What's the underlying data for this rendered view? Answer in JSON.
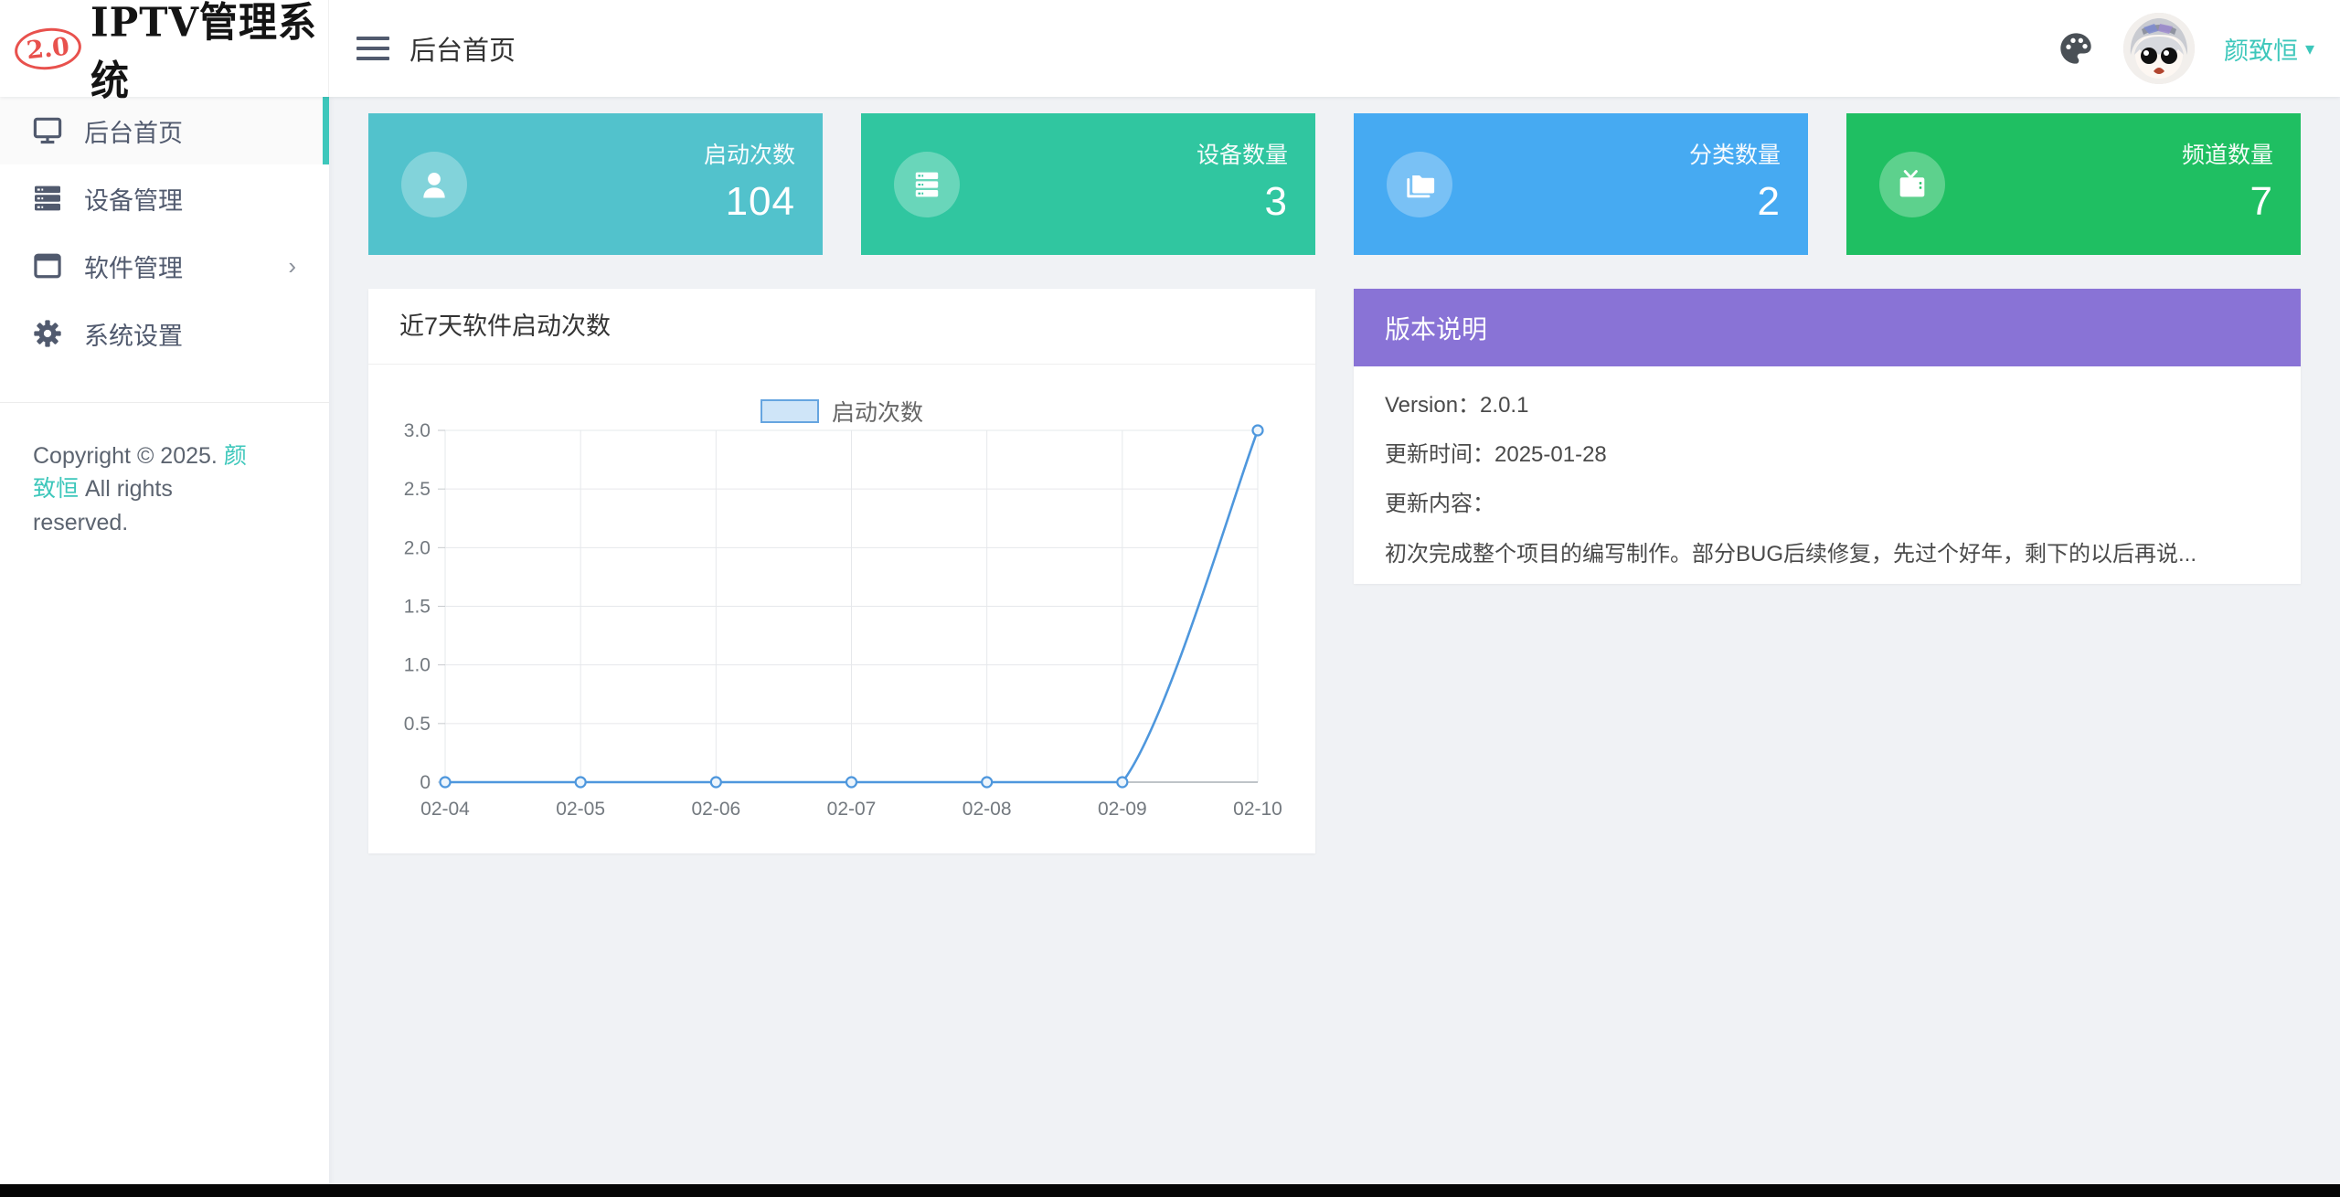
{
  "theme": {
    "accent_teal": "#3dc7bb",
    "content_bg": "#f0f2f5",
    "chart_line": "#4e97dd",
    "legend_fill": "#cfe5f8",
    "legend_border": "#66a5e0"
  },
  "app": {
    "version_badge": "2.0",
    "title": "IPTV管理系统"
  },
  "header": {
    "breadcrumb": "后台首页",
    "username": "颜致恒",
    "caret": "▾",
    "icons": [
      "hamburger-icon",
      "palette-icon",
      "avatar"
    ]
  },
  "sidebar": {
    "items": [
      {
        "label": "后台首页",
        "icon": "monitor-icon",
        "active": true
      },
      {
        "label": "设备管理",
        "icon": "server-icon",
        "active": false
      },
      {
        "label": "软件管理",
        "icon": "window-icon",
        "active": false,
        "expand_arrow": "›"
      },
      {
        "label": "系统设置",
        "icon": "gear-icon",
        "active": false
      }
    ],
    "copyright_prefix": "Copyright © 2025. ",
    "copyright_name": "颜致恒",
    "copyright_suffix": " All rights reserved."
  },
  "stats": [
    {
      "label": "启动次数",
      "value": "104",
      "color": "#52c2cc",
      "icon": "user-icon"
    },
    {
      "label": "设备数量",
      "value": "3",
      "color": "#30c6a0",
      "icon": "server-stack-icon"
    },
    {
      "label": "分类数量",
      "value": "2",
      "color": "#46aaf2",
      "icon": "folder-icon"
    },
    {
      "label": "频道数量",
      "value": "7",
      "color": "#1fbf62",
      "icon": "tv-icon"
    }
  ],
  "chart_panel": {
    "title": "近7天软件启动次数"
  },
  "chart_data": {
    "type": "line",
    "title": "近7天软件启动次数",
    "x": [
      "02-04",
      "02-05",
      "02-06",
      "02-07",
      "02-08",
      "02-09",
      "02-10"
    ],
    "series": [
      {
        "name": "启动次数",
        "values": [
          0,
          0,
          0,
          0,
          0,
          0,
          3
        ]
      }
    ],
    "xlabel": "",
    "ylabel": "",
    "ylim": [
      0,
      3
    ],
    "yticks": [
      0,
      0.5,
      1.0,
      1.5,
      2.0,
      2.5,
      3.0
    ],
    "grid": true,
    "smooth": true,
    "legend_position": "top-center"
  },
  "version_panel": {
    "title": "版本说明",
    "header_color": "#8973d6",
    "lines": [
      "Version：2.0.1",
      "更新时间：2025-01-28",
      "更新内容：",
      "初次完成整个项目的编写制作。部分BUG后续修复，先过个好年，剩下的以后再说..."
    ]
  }
}
